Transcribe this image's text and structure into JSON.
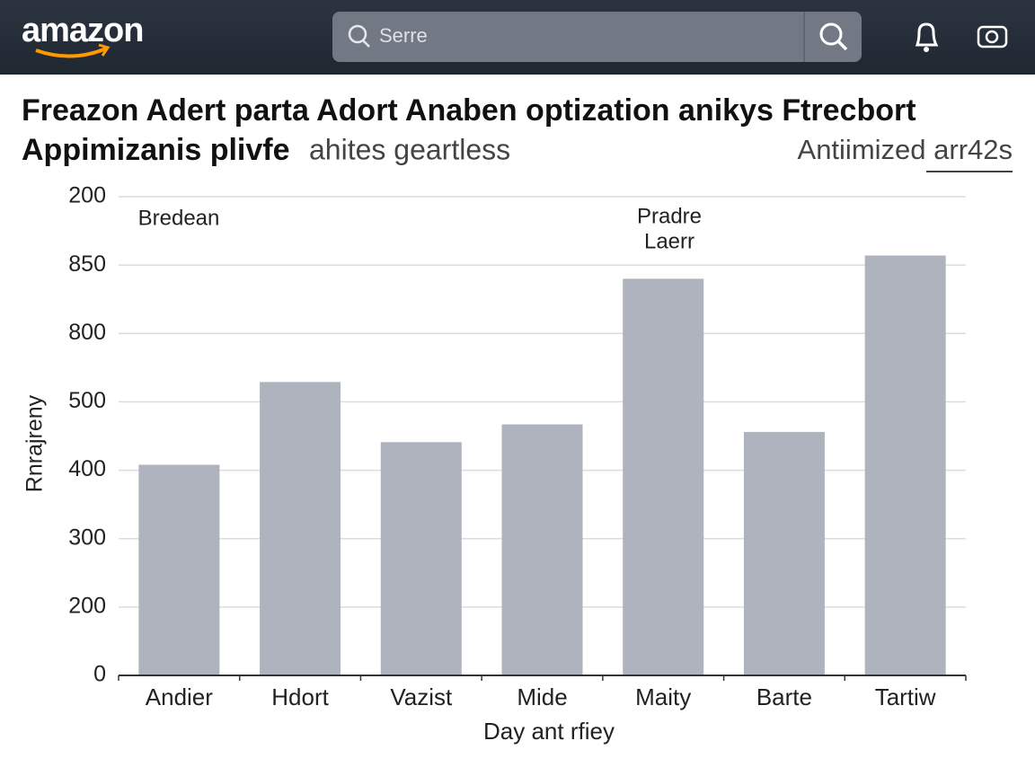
{
  "header": {
    "logo": "amazon",
    "search_placeholder": "Serre"
  },
  "chart_data": {
    "type": "bar",
    "title": [
      "Freazon Adert parta Adort Anaben optization anikys Ftrecbort",
      "Appimizanis plivfe"
    ],
    "subtitle": "ahites geartless",
    "link": "Antiimized arr42s",
    "ylabel": "Rnrajreny",
    "xlabel": "Day ant rfiey",
    "annotations": [
      [
        "Bredean"
      ],
      [
        "Pradre",
        "Laerr"
      ]
    ],
    "categories": [
      "Andier",
      "Hdort",
      "Vazist",
      "Mide",
      "Maity",
      "Barte",
      "Tartiw"
    ],
    "values": [
      3.08,
      4.29,
      3.41,
      3.67,
      5.8,
      3.56,
      6.14
    ],
    "color": "#aeb3bd",
    "ylim": [
      0,
      7
    ],
    "yticks": [
      0,
      {
        "value": 1,
        "label": "200"
      },
      {
        "value": 2,
        "label": "300"
      },
      {
        "value": 3,
        "label": "400"
      },
      {
        "value": 4,
        "label": "500"
      },
      {
        "value": 5,
        "label": "800"
      },
      {
        "value": 6,
        "label": "850"
      },
      {
        "value": 7,
        "label": "200"
      }
    ],
    "grid": true
  }
}
